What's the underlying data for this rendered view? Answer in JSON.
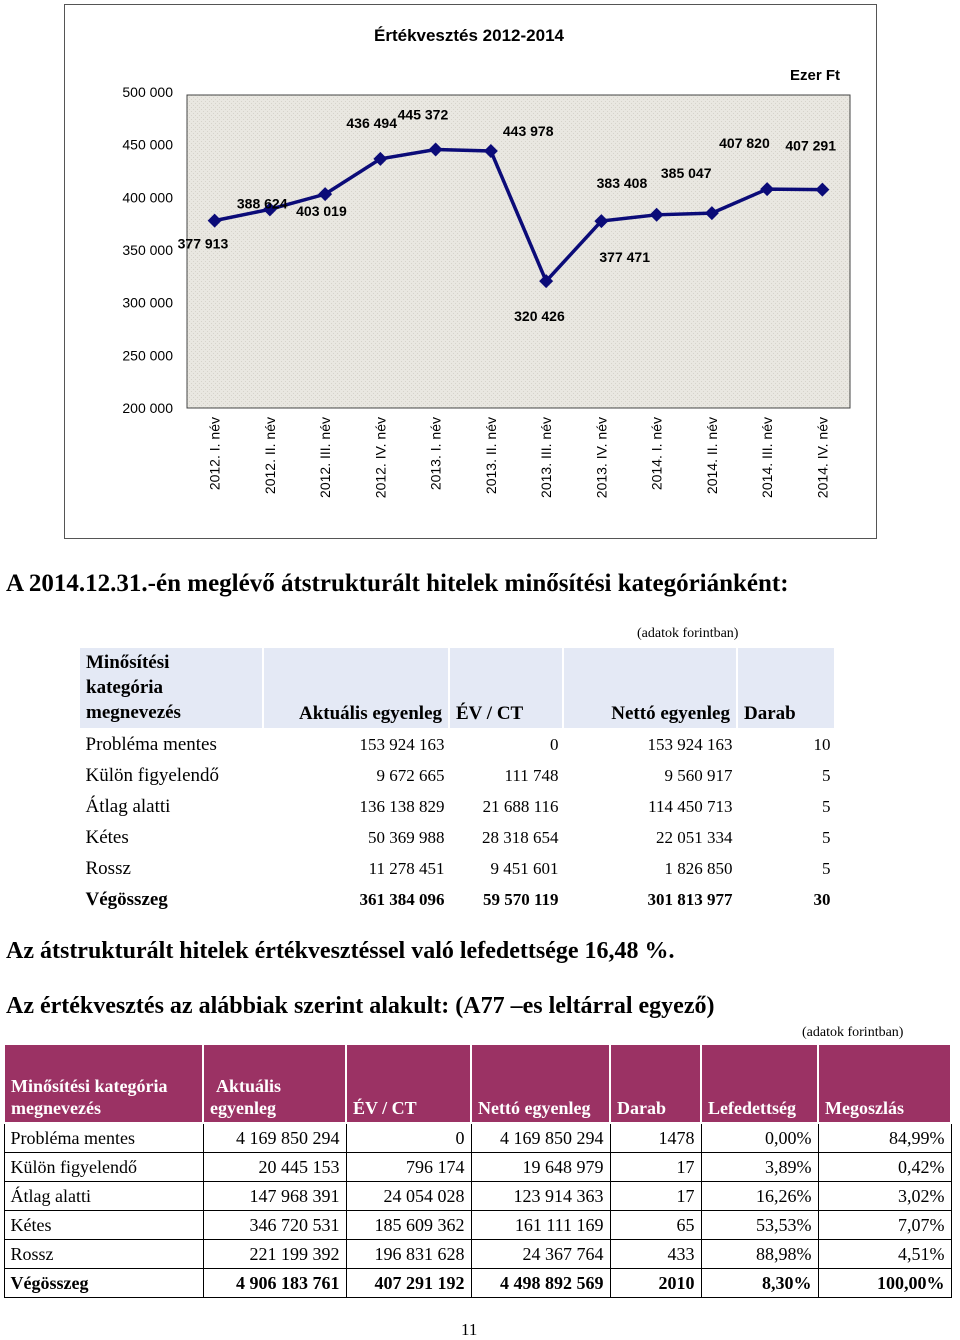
{
  "chart_data": {
    "type": "line",
    "title": "Értékvesztés 2012-2014",
    "unit_label": "Ezer Ft",
    "categories": [
      "2012. I. név",
      "2012. II. név",
      "2012. III. név",
      "2012. IV. név",
      "2013. I. név",
      "2013. II. név",
      "2013. III. név",
      "2013. IV. név",
      "2014. I. név",
      "2014. II. név",
      "2014. III. név",
      "2014. IV. név"
    ],
    "values": [
      377913,
      388624,
      403019,
      436494,
      445372,
      443978,
      320426,
      377471,
      383408,
      385047,
      407820,
      407291
    ],
    "value_labels": [
      "377 913",
      "388 624",
      "403 019",
      "436 494",
      "445 372",
      "443 978",
      "320 426",
      "377 471",
      "383 408",
      "385 047",
      "407 820",
      "407 291"
    ],
    "ylim": [
      200000,
      500000
    ],
    "yticks": [
      200000,
      250000,
      300000,
      350000,
      400000,
      450000,
      500000
    ],
    "ytick_labels": [
      "200 000",
      "250 000",
      "300 000",
      "350 000",
      "400 000",
      "450 000",
      "500 000"
    ],
    "grid": false,
    "legend": "none",
    "line_color": "#0b0b78",
    "plot_background": "#e8e6e0"
  },
  "heading1": "A 2014.12.31.-én meglévő átstrukturált hitelek minősítési kategóriánként:",
  "table1": {
    "note": "(adatok forintban)",
    "header": {
      "first": [
        "Minősítési",
        "kategória",
        "megnevezés"
      ],
      "cols": [
        "Aktuális egyenleg",
        "ÉV / CT",
        "Nettó egyenleg",
        "Darab"
      ]
    },
    "rows": [
      [
        "Probléma mentes",
        "153 924 163",
        "0",
        "153 924 163",
        "10"
      ],
      [
        "Külön figyelendő",
        "9 672 665",
        "111 748",
        "9 560 917",
        "5"
      ],
      [
        "Átlag alatti",
        "136 138 829",
        "21 688 116",
        "114 450 713",
        "5"
      ],
      [
        "Kétes",
        "50 369 988",
        "28 318 654",
        "22 051 334",
        "5"
      ],
      [
        "Rossz",
        "11 278 451",
        "9 451 601",
        "1 826 850",
        "5"
      ],
      [
        "Végösszeg",
        "361 384 096",
        "59 570 119",
        "301 813 977",
        "30"
      ]
    ]
  },
  "heading2": "Az átstrukturált hitelek értékvesztéssel való lefedettsége 16,48 %.",
  "heading3": "Az értékvesztés az alábbiak szerint alakult: (A77 –es leltárral egyező)",
  "table2": {
    "note": "(adatok forintban)",
    "header": {
      "first": [
        "Minősítési kategória",
        "megnevezés"
      ],
      "second": [
        "Aktuális",
        "egyenleg"
      ],
      "cols": [
        "ÉV / CT",
        "Nettó egyenleg",
        "Darab",
        "Lefedettség",
        "Megoszlás"
      ]
    },
    "rows": [
      [
        "Probléma mentes",
        "4 169 850 294",
        "0",
        "4 169 850 294",
        "1478",
        "0,00%",
        "84,99%"
      ],
      [
        "Külön figyelendő",
        "20 445 153",
        "796 174",
        "19 648 979",
        "17",
        "3,89%",
        "0,42%"
      ],
      [
        "Átlag alatti",
        "147 968 391",
        "24 054 028",
        "123 914 363",
        "17",
        "16,26%",
        "3,02%"
      ],
      [
        "Kétes",
        "346 720 531",
        "185 609 362",
        "161 111 169",
        "65",
        "53,53%",
        "7,07%"
      ],
      [
        "Rossz",
        "221 199 392",
        "196 831 628",
        "24 367 764",
        "433",
        "88,98%",
        "4,51%"
      ],
      [
        "Végösszeg",
        "4 906 183 761",
        "407 291 192",
        "4 498 892 569",
        "2010",
        "8,30%",
        "100,00%"
      ]
    ]
  },
  "page_number": "11"
}
